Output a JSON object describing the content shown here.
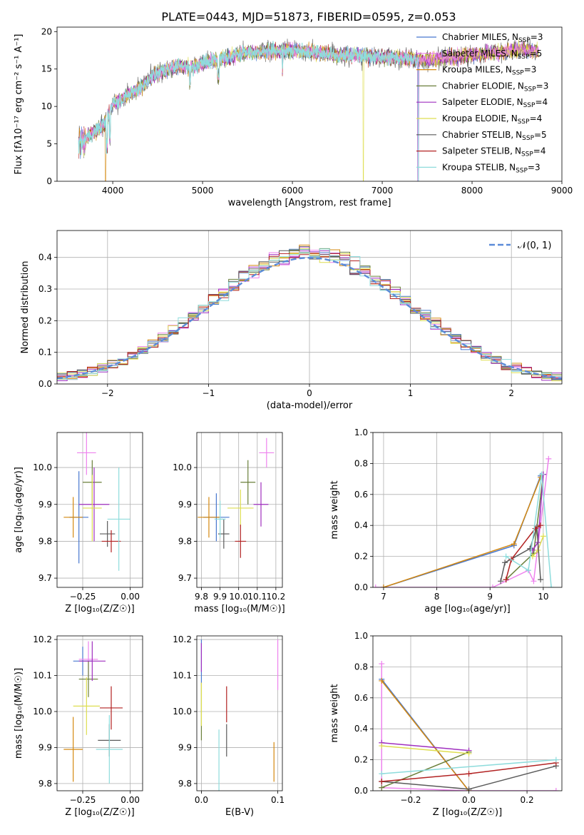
{
  "figure_title": "PLATE=0443, MJD=51873, FIBERID=0595, z=0.053",
  "colors": [
    "#4878cf",
    "#ee82ee",
    "#d4880f",
    "#6a7f3a",
    "#9f2fbf",
    "#dede50",
    "#5a5a5a",
    "#b22222",
    "#8edcdc"
  ],
  "model_names": [
    "Chabrier MILES",
    "Salpeter MILES",
    "Kroupa MILES",
    "Chabrier ELODIE",
    "Salpeter ELODIE",
    "Kroupa ELODIE",
    "Chabrier STELIB",
    "Salpeter STELIB",
    "Kroupa STELIB"
  ],
  "nssp": [
    3,
    5,
    3,
    3,
    4,
    4,
    5,
    4,
    3
  ],
  "legend_nssp_label": "N",
  "legend_nssp_sub": "SSP",
  "chart_data": [
    {
      "id": "spectrum",
      "type": "line",
      "title": "PLATE=0443, MJD=51873, FIBERID=0595, z=0.053",
      "xlabel": "wavelength [Angstrom, rest frame]",
      "ylabel": "Flux [fλ10⁻¹⁷ erg cm⁻² s⁻¹ A⁻¹]",
      "xlim": [
        3380,
        9000
      ],
      "ylim": [
        0,
        20.6
      ],
      "xticks": [
        4000,
        5000,
        6000,
        7000,
        8000,
        9000
      ],
      "yticks": [
        0,
        5,
        10,
        15,
        20
      ],
      "grid": false,
      "legend_position": "upper-right",
      "continuum": [
        [
          3620,
          5.2
        ],
        [
          3700,
          5.6
        ],
        [
          3800,
          6.7
        ],
        [
          3900,
          7.5
        ],
        [
          4000,
          10.3
        ],
        [
          4100,
          11.0
        ],
        [
          4200,
          11.8
        ],
        [
          4300,
          12.4
        ],
        [
          4400,
          13.6
        ],
        [
          4500,
          14.5
        ],
        [
          4700,
          15.3
        ],
        [
          4900,
          15.4
        ],
        [
          5100,
          16.1
        ],
        [
          5300,
          16.6
        ],
        [
          5500,
          17.2
        ],
        [
          5700,
          17.3
        ],
        [
          5900,
          17.5
        ],
        [
          6100,
          17.4
        ],
        [
          6300,
          17.1
        ],
        [
          6500,
          16.8
        ],
        [
          6700,
          16.9
        ],
        [
          6900,
          16.6
        ],
        [
          7100,
          16.5
        ],
        [
          7300,
          16.4
        ],
        [
          7500,
          16.2
        ],
        [
          7700,
          16.5
        ],
        [
          7900,
          16.7
        ],
        [
          8100,
          17.0
        ],
        [
          8300,
          17.2
        ],
        [
          8500,
          17.6
        ],
        [
          8700,
          17.5
        ],
        [
          8740,
          17.4
        ]
      ],
      "dropouts": [
        {
          "series": 2,
          "x": 3920
        },
        {
          "series": 5,
          "x": 6790
        },
        {
          "series": 4,
          "x": 7400
        }
      ],
      "truncations": [
        {
          "series": 8,
          "x": 7400
        }
      ]
    },
    {
      "id": "residuals",
      "type": "histogram",
      "xlabel": "(data-model)/error",
      "ylabel": "Normed distribution",
      "xlim": [
        -2.5,
        2.5
      ],
      "ylim": [
        0,
        0.485
      ],
      "xticks": [
        -2,
        -1,
        0,
        1,
        2
      ],
      "yticks": [
        0.0,
        0.1,
        0.2,
        0.3,
        0.4
      ],
      "grid": true,
      "legend": [
        {
          "label": "𝒩(0, 1)",
          "style": "dashed",
          "color": "#5b8bd8"
        }
      ],
      "legend_position": "upper-right",
      "bin_width": 0.1,
      "normal_curve": {
        "mean": 0,
        "sd": 1
      }
    },
    {
      "id": "age_vs_Z",
      "type": "errorbar",
      "xlabel": "Z [log₁₀(Z/Z☉)]",
      "ylabel": "age  [log₁₀(age/yr)]",
      "xlim": [
        -0.385,
        0.065
      ],
      "ylim": [
        9.675,
        10.095
      ],
      "xticks": [
        -0.25,
        0.0
      ],
      "yticks": [
        9.7,
        9.8,
        9.9,
        10.0
      ],
      "grid": true,
      "points": [
        {
          "x": -0.27,
          "y": 9.865,
          "xerr": 0.05,
          "yerr": [
            0.125,
            0.125
          ]
        },
        {
          "x": -0.23,
          "y": 10.04,
          "xerr": 0.05,
          "yerr": [
            0.06,
            0.06
          ]
        },
        {
          "x": -0.3,
          "y": 9.865,
          "xerr": 0.05,
          "yerr": [
            0.055,
            0.055
          ]
        },
        {
          "x": -0.2,
          "y": 9.96,
          "xerr": 0.05,
          "yerr": [
            0.06,
            0.06
          ]
        },
        {
          "x": -0.19,
          "y": 9.9,
          "xerr": 0.08,
          "yerr": [
            0.1,
            0.1
          ]
        },
        {
          "x": -0.2,
          "y": 9.89,
          "xerr": 0.05,
          "yerr": [
            0.09,
            0.09
          ]
        },
        {
          "x": -0.12,
          "y": 9.82,
          "xerr": 0.04,
          "yerr": [
            0.035,
            0.035
          ]
        },
        {
          "x": -0.1,
          "y": 9.8,
          "xerr": 0.05,
          "yerr": [
            0.03,
            0.03
          ]
        },
        {
          "x": -0.06,
          "y": 9.86,
          "xerr": 0.06,
          "yerr": [
            0.14,
            0.14
          ]
        }
      ]
    },
    {
      "id": "age_vs_mass",
      "type": "errorbar",
      "xlabel": "mass [log₁₀(M/M☉)]",
      "ylabel": "",
      "xlim": [
        9.775,
        10.235
      ],
      "ylim": [
        9.675,
        10.095
      ],
      "xticks": [
        9.8,
        9.9,
        10.0,
        10.1,
        10.2
      ],
      "yticks": [
        9.7,
        9.8,
        9.9,
        10.0
      ],
      "grid": true,
      "points": [
        {
          "x": 9.88,
          "y": 9.865,
          "xerr": 0.07,
          "yerr": [
            0.065,
            0.065
          ]
        },
        {
          "x": 10.15,
          "y": 10.04,
          "xerr": 0.04,
          "yerr": [
            0.04,
            0.04
          ]
        },
        {
          "x": 9.84,
          "y": 9.865,
          "xerr": 0.06,
          "yerr": [
            0.055,
            0.055
          ]
        },
        {
          "x": 10.05,
          "y": 9.96,
          "xerr": 0.04,
          "yerr": [
            0.06,
            0.06
          ]
        },
        {
          "x": 10.12,
          "y": 9.9,
          "xerr": 0.04,
          "yerr": [
            0.06,
            0.06
          ]
        },
        {
          "x": 10.01,
          "y": 9.89,
          "xerr": 0.07,
          "yerr": [
            0.05,
            0.05
          ]
        },
        {
          "x": 9.92,
          "y": 9.82,
          "xerr": 0.03,
          "yerr": [
            0.04,
            0.04
          ]
        },
        {
          "x": 10.01,
          "y": 9.8,
          "xerr": 0.03,
          "yerr": [
            0.045,
            0.045
          ]
        },
        {
          "x": 9.9,
          "y": 9.86,
          "xerr": 0.03,
          "yerr": [
            0.05,
            0.05
          ]
        }
      ]
    },
    {
      "id": "weight_vs_age",
      "type": "line",
      "xlabel": "age  [log₁₀(age/yr)]",
      "ylabel": "mass weight",
      "xlim": [
        6.8,
        10.35
      ],
      "ylim": [
        0,
        1.0
      ],
      "xticks": [
        7,
        8,
        9,
        10
      ],
      "yticks": [
        0.0,
        0.2,
        0.4,
        0.6,
        0.8,
        1.0
      ],
      "grid": true,
      "series": [
        {
          "points": [
            [
              7.0,
              0.0
            ],
            [
              9.45,
              0.27
            ],
            [
              9.95,
              0.72
            ]
          ]
        },
        {
          "points": [
            [
              6.85,
              0.0
            ],
            [
              9.05,
              0.0
            ],
            [
              9.72,
              0.11
            ],
            [
              9.82,
              0.04
            ],
            [
              10.1,
              0.83
            ]
          ]
        },
        {
          "points": [
            [
              7.0,
              0.0
            ],
            [
              9.45,
              0.28
            ],
            [
              9.95,
              0.71
            ]
          ]
        },
        {
          "points": [
            [
              9.3,
              0.05
            ],
            [
              9.82,
              0.22
            ],
            [
              10.0,
              0.73
            ]
          ]
        },
        {
          "points": [
            [
              9.8,
              0.24
            ],
            [
              9.9,
              0.29
            ],
            [
              10.0,
              0.73
            ]
          ]
        },
        {
          "points": [
            [
              9.8,
              0.2
            ],
            [
              9.9,
              0.24
            ],
            [
              10.0,
              0.33
            ]
          ]
        },
        {
          "points": [
            [
              9.2,
              0.04
            ],
            [
              9.28,
              0.16
            ],
            [
              9.75,
              0.25
            ],
            [
              9.88,
              0.39
            ],
            [
              9.95,
              0.05
            ]
          ]
        },
        {
          "points": [
            [
              9.3,
              0.05
            ],
            [
              9.4,
              0.18
            ],
            [
              9.85,
              0.38
            ],
            [
              9.95,
              0.4
            ]
          ]
        },
        {
          "points": [
            [
              9.3,
              0.2
            ],
            [
              9.72,
              0.11
            ],
            [
              9.97,
              0.73
            ],
            [
              10.15,
              0.0
            ]
          ]
        }
      ]
    },
    {
      "id": "mass_vs_Z",
      "type": "errorbar",
      "xlabel": "Z [log₁₀(Z/Z☉)]",
      "ylabel": "mass [log₁₀(M/M☉)]",
      "xlim": [
        -0.385,
        0.065
      ],
      "ylim": [
        9.78,
        10.21
      ],
      "xticks": [
        -0.25,
        0.0
      ],
      "yticks": [
        9.8,
        9.9,
        10.0,
        10.1,
        10.2
      ],
      "grid": true,
      "points": [
        {
          "x": -0.25,
          "y": 10.14,
          "xerr": 0.05,
          "yerr": [
            0.04,
            0.04
          ]
        },
        {
          "x": -0.22,
          "y": 10.145,
          "xerr": 0.05,
          "yerr": [
            0.05,
            0.05
          ]
        },
        {
          "x": -0.3,
          "y": 9.895,
          "xerr": 0.05,
          "yerr": [
            0.09,
            0.09
          ]
        },
        {
          "x": -0.22,
          "y": 10.09,
          "xerr": 0.05,
          "yerr": [
            0.05,
            0.05
          ]
        },
        {
          "x": -0.2,
          "y": 10.14,
          "xerr": 0.07,
          "yerr": [
            0.055,
            0.055
          ]
        },
        {
          "x": -0.23,
          "y": 10.015,
          "xerr": 0.07,
          "yerr": [
            0.08,
            0.08
          ]
        },
        {
          "x": -0.11,
          "y": 9.92,
          "xerr": 0.06,
          "yerr": [
            0.045,
            0.045
          ]
        },
        {
          "x": -0.1,
          "y": 10.01,
          "xerr": 0.06,
          "yerr": [
            0.06,
            0.06
          ]
        },
        {
          "x": -0.11,
          "y": 9.895,
          "xerr": 0.07,
          "yerr": [
            0.095,
            0.095
          ]
        }
      ]
    },
    {
      "id": "mass_vs_EBV",
      "type": "errorbar",
      "xlabel": "E(B-V)",
      "ylabel": "",
      "xlim": [
        -0.006,
        0.106
      ],
      "ylim": [
        9.78,
        10.21
      ],
      "xticks": [
        0.0,
        0.1
      ],
      "yticks": [
        9.8,
        9.9,
        10.0,
        10.1,
        10.2
      ],
      "grid": true,
      "points": [
        {
          "x": 0.0,
          "y": 10.14,
          "xerr": 0,
          "yerr": [
            0.06,
            0.06
          ]
        },
        {
          "x": 0.1,
          "y": 10.13,
          "xerr": 0,
          "yerr": [
            0.07,
            0.07
          ]
        },
        {
          "x": 0.095,
          "y": 9.86,
          "xerr": 0,
          "yerr": [
            0.055,
            0.055
          ]
        },
        {
          "x": 0.0,
          "y": 10.0,
          "xerr": 0,
          "yerr": [
            0.08,
            0.08
          ]
        },
        {
          "x": 0.0,
          "y": 10.15,
          "xerr": 0,
          "yerr": [
            0.04,
            0.04
          ]
        },
        {
          "x": 0.0,
          "y": 10.02,
          "xerr": 0,
          "yerr": [
            0.06,
            0.06
          ]
        },
        {
          "x": 0.033,
          "y": 9.92,
          "xerr": 0,
          "yerr": [
            0.045,
            0.045
          ]
        },
        {
          "x": 0.033,
          "y": 10.02,
          "xerr": 0,
          "yerr": [
            0.05,
            0.05
          ]
        },
        {
          "x": 0.023,
          "y": 9.86,
          "xerr": 0,
          "yerr": [
            0.09,
            0.09
          ]
        }
      ]
    },
    {
      "id": "weight_vs_Z",
      "type": "line",
      "xlabel": "Z [log₁₀(Z/Z☉)]",
      "ylabel": "mass weight",
      "xlim": [
        -0.33,
        0.32
      ],
      "ylim": [
        0,
        1.0
      ],
      "xticks": [
        -0.2,
        0.0,
        0.2
      ],
      "yticks": [
        0.0,
        0.2,
        0.4,
        0.6,
        0.8,
        1.0
      ],
      "grid": true,
      "series": [
        {
          "points": [
            [
              -0.3,
              0.72
            ],
            [
              0.0,
              0.0
            ]
          ]
        },
        {
          "points": [
            [
              -0.3,
              0.82
            ],
            [
              -0.3,
              0.02
            ],
            [
              0.0,
              0.0
            ],
            [
              0.3,
              0.0
            ]
          ]
        },
        {
          "points": [
            [
              -0.3,
              0.71
            ],
            [
              0.0,
              0.0
            ]
          ]
        },
        {
          "points": [
            [
              -0.3,
              0.02
            ],
            [
              0.0,
              0.25
            ]
          ]
        },
        {
          "points": [
            [
              -0.3,
              0.31
            ],
            [
              0.0,
              0.26
            ]
          ]
        },
        {
          "points": [
            [
              -0.3,
              0.29
            ],
            [
              0.0,
              0.24
            ]
          ]
        },
        {
          "points": [
            [
              -0.3,
              0.06
            ],
            [
              0.0,
              0.01
            ],
            [
              0.3,
              0.16
            ]
          ]
        },
        {
          "points": [
            [
              -0.3,
              0.06
            ],
            [
              0.0,
              0.11
            ],
            [
              0.3,
              0.18
            ]
          ]
        },
        {
          "points": [
            [
              -0.3,
              0.11
            ],
            [
              0.3,
              0.2
            ]
          ]
        }
      ]
    }
  ]
}
